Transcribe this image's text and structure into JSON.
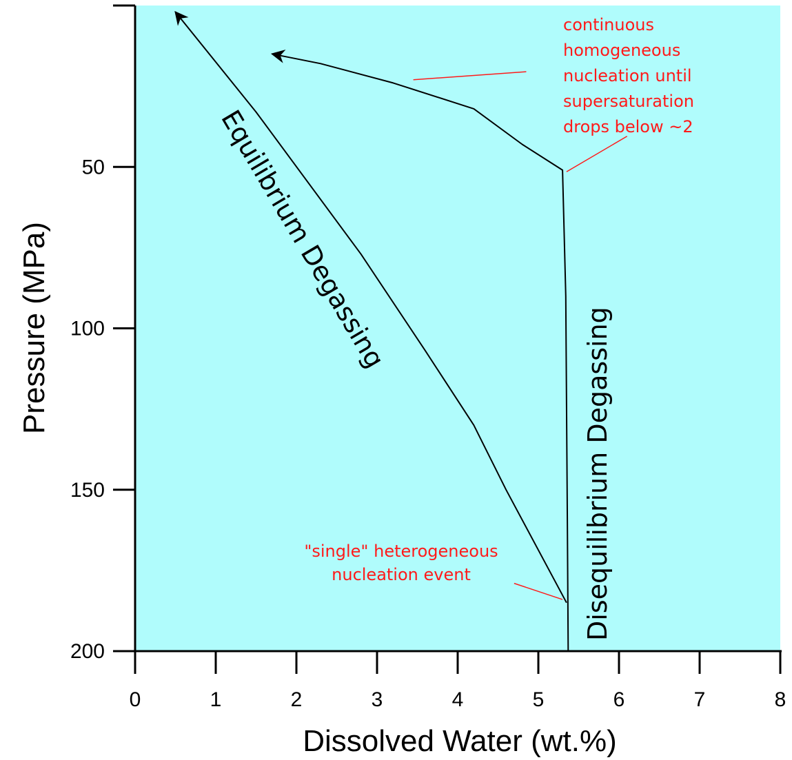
{
  "chart_data": {
    "type": "line",
    "title": "",
    "xlabel": "Dissolved Water (wt.%)",
    "ylabel": "Pressure (MPa)",
    "xlim": [
      0,
      8
    ],
    "ylim": [
      200,
      0
    ],
    "y_inverted": true,
    "x_ticks": [
      0,
      1,
      2,
      3,
      4,
      5,
      6,
      7,
      8
    ],
    "x_tick_labels": [
      "0",
      "1",
      "2",
      "3",
      "4",
      "5",
      "6",
      "7",
      "8"
    ],
    "y_ticks": [
      50,
      100,
      150,
      200
    ],
    "y_tick_labels": [
      "50",
      "100",
      "150",
      "200"
    ],
    "grid": false,
    "background_color": "#b0fcfc",
    "series": [
      {
        "name": "Equilibrium Degassing",
        "color": "#000000",
        "arrow_at_end": true,
        "points": [
          [
            5.35,
            185
          ],
          [
            4.6,
            150
          ],
          [
            4.2,
            130
          ],
          [
            3.6,
            107
          ],
          [
            2.8,
            77
          ],
          [
            1.5,
            33
          ],
          [
            0.5,
            2
          ]
        ]
      },
      {
        "name": "Disequilibrium Degassing",
        "color": "#000000",
        "arrow_at_end": true,
        "points": [
          [
            5.37,
            200
          ],
          [
            5.36,
            160
          ],
          [
            5.34,
            90
          ],
          [
            5.3,
            51
          ],
          [
            4.8,
            43
          ],
          [
            4.2,
            32
          ],
          [
            3.2,
            24
          ],
          [
            2.3,
            18
          ],
          [
            1.7,
            15
          ]
        ]
      }
    ],
    "annotations": [
      {
        "lines": [
          "continuous",
          "homogeneous",
          "nucleation until",
          "supersaturation",
          "drops below ~2"
        ],
        "color": "#ff1a1a",
        "leaders": [
          {
            "from": [
              4.85,
              20.5
            ],
            "to": [
              3.45,
              23
            ]
          },
          {
            "from": [
              6.1,
              40.5
            ],
            "to": [
              5.35,
              51.5
            ]
          }
        ]
      },
      {
        "lines": [
          "\"single\" heterogeneous",
          "nucleation event"
        ],
        "color": "#ff1a1a",
        "leaders": [
          {
            "from": [
              4.7,
              179
            ],
            "to": [
              5.3,
              184
            ]
          }
        ]
      }
    ]
  }
}
